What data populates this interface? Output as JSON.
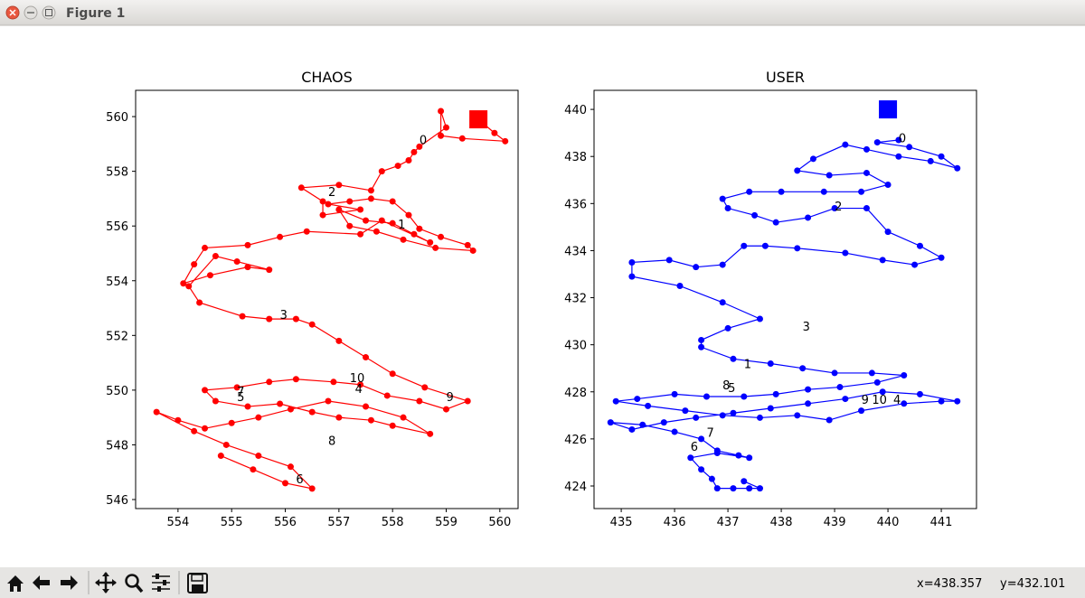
{
  "window": {
    "title": "Figure 1"
  },
  "status": {
    "x": "x=438.357",
    "y": "y=432.101"
  },
  "chart_data": [
    {
      "type": "line",
      "title": "CHAOS",
      "color": "#ff0000",
      "xlim": [
        553.21,
        560.34
      ],
      "ylim": [
        545.67,
        560.96
      ],
      "xticks": [
        554,
        555,
        556,
        557,
        558,
        559,
        560
      ],
      "yticks": [
        546,
        548,
        550,
        552,
        554,
        556,
        558,
        560
      ],
      "end_marker": {
        "x": 559.6,
        "y": 559.9
      },
      "x": [
        559.6,
        559.9,
        560.1,
        559.3,
        558.9,
        558.9,
        559.0,
        558.5,
        558.4,
        558.3,
        558.1,
        557.8,
        557.6,
        557.0,
        556.3,
        556.7,
        556.7,
        557.4,
        556.8,
        557.2,
        557.6,
        558.0,
        558.3,
        558.5,
        558.9,
        559.4,
        559.5,
        558.8,
        558.2,
        557.7,
        557.2,
        557.0,
        557.5,
        558.0,
        558.4,
        558.7,
        557.8,
        557.4,
        556.4,
        555.9,
        555.3,
        554.5,
        554.3,
        554.1,
        554.6,
        555.3,
        555.7,
        555.1,
        554.7,
        554.2,
        554.4,
        555.2,
        555.7,
        556.2,
        556.5,
        557.0,
        557.5,
        558.0,
        558.6,
        559.4,
        559.0,
        558.5,
        557.9,
        557.4,
        556.9,
        556.2,
        555.7,
        555.1,
        554.5,
        554.7,
        555.3,
        555.9,
        556.5,
        557.0,
        557.6,
        558.0,
        558.7,
        558.2,
        557.5,
        556.8,
        556.1,
        555.5,
        555.0,
        554.5,
        554.0,
        553.6,
        554.3,
        554.9,
        555.5,
        556.1,
        556.5,
        556.0,
        555.4,
        554.8
      ],
      "y": [
        559.9,
        559.4,
        559.1,
        559.2,
        559.3,
        560.2,
        559.6,
        558.9,
        558.7,
        558.4,
        558.2,
        558.0,
        557.3,
        557.5,
        557.4,
        556.9,
        556.4,
        556.6,
        556.8,
        556.9,
        557.0,
        556.9,
        556.4,
        555.9,
        555.6,
        555.3,
        555.1,
        555.2,
        555.5,
        555.8,
        556.0,
        556.6,
        556.2,
        556.1,
        555.7,
        555.4,
        556.2,
        555.7,
        555.8,
        555.6,
        555.3,
        555.2,
        554.6,
        553.9,
        554.2,
        554.5,
        554.4,
        554.7,
        554.9,
        553.8,
        553.2,
        552.7,
        552.6,
        552.6,
        552.4,
        551.8,
        551.2,
        550.6,
        550.1,
        549.6,
        549.3,
        549.6,
        549.8,
        550.2,
        550.3,
        550.4,
        550.3,
        550.1,
        550.0,
        549.6,
        549.4,
        549.5,
        549.2,
        549.0,
        548.9,
        548.7,
        548.4,
        549.0,
        549.4,
        549.6,
        549.3,
        549.0,
        548.8,
        548.6,
        548.9,
        549.2,
        548.5,
        548.0,
        547.6,
        547.2,
        546.4,
        546.6,
        547.1,
        547.6
      ],
      "annotations": [
        {
          "text": "0",
          "x": 558.5,
          "y": 559.0
        },
        {
          "text": "1",
          "x": 558.1,
          "y": 555.9
        },
        {
          "text": "2",
          "x": 556.8,
          "y": 557.1
        },
        {
          "text": "3",
          "x": 555.9,
          "y": 552.6
        },
        {
          "text": "4",
          "x": 557.3,
          "y": 549.9
        },
        {
          "text": "5",
          "x": 555.1,
          "y": 549.6
        },
        {
          "text": "6",
          "x": 556.2,
          "y": 546.6
        },
        {
          "text": "7",
          "x": 555.1,
          "y": 549.8
        },
        {
          "text": "8",
          "x": 556.8,
          "y": 548.0
        },
        {
          "text": "9",
          "x": 559.0,
          "y": 549.6
        },
        {
          "text": "10",
          "x": 557.2,
          "y": 550.3
        }
      ]
    },
    {
      "type": "line",
      "title": "USER",
      "color": "#0000ff",
      "xlim": [
        434.49,
        441.66
      ],
      "ylim": [
        423.04,
        440.81
      ],
      "xticks": [
        435,
        436,
        437,
        438,
        439,
        440,
        441
      ],
      "yticks": [
        424,
        426,
        428,
        430,
        432,
        434,
        436,
        438,
        440
      ],
      "end_marker": {
        "x": 440,
        "y": 440
      },
      "x": [
        440.2,
        439.8,
        440.4,
        441.0,
        441.3,
        440.8,
        440.2,
        439.6,
        439.2,
        438.6,
        438.3,
        438.9,
        439.6,
        440.0,
        439.5,
        438.8,
        438.0,
        437.4,
        436.9,
        437.0,
        437.5,
        437.9,
        438.5,
        439.0,
        439.6,
        440.0,
        440.6,
        441.0,
        440.5,
        439.9,
        439.2,
        438.3,
        437.7,
        437.3,
        436.9,
        436.4,
        435.9,
        435.2,
        435.2,
        436.1,
        436.9,
        437.6,
        437.0,
        436.5,
        436.5,
        437.1,
        437.8,
        438.4,
        439.0,
        439.7,
        440.3,
        439.8,
        439.1,
        438.5,
        437.9,
        437.3,
        436.6,
        436.0,
        435.3,
        434.9,
        435.5,
        436.2,
        436.9,
        437.6,
        438.3,
        438.9,
        439.5,
        440.3,
        441.0,
        441.3,
        440.6,
        439.9,
        439.2,
        438.5,
        437.8,
        437.1,
        436.4,
        435.8,
        435.2,
        434.8,
        435.4,
        436.0,
        436.5,
        436.8,
        437.2,
        437.4,
        436.8,
        436.3,
        436.5,
        436.7,
        436.8,
        437.1,
        437.4,
        437.6,
        437.3
      ],
      "y": [
        438.7,
        438.6,
        438.4,
        438.0,
        437.5,
        437.8,
        438.0,
        438.3,
        438.5,
        437.9,
        437.4,
        437.2,
        437.3,
        436.8,
        436.5,
        436.5,
        436.5,
        436.5,
        436.2,
        435.8,
        435.5,
        435.2,
        435.4,
        435.8,
        435.8,
        434.8,
        434.2,
        433.7,
        433.4,
        433.6,
        433.9,
        434.1,
        434.2,
        434.2,
        433.4,
        433.3,
        433.6,
        433.5,
        432.9,
        432.5,
        431.8,
        431.1,
        430.7,
        430.2,
        429.9,
        429.4,
        429.2,
        429.0,
        428.8,
        428.8,
        428.7,
        428.4,
        428.2,
        428.1,
        427.9,
        427.8,
        427.8,
        427.9,
        427.7,
        427.6,
        427.4,
        427.2,
        427.0,
        426.9,
        427.0,
        426.8,
        427.2,
        427.5,
        427.6,
        427.6,
        427.9,
        428.0,
        427.7,
        427.5,
        427.3,
        427.1,
        426.9,
        426.7,
        426.4,
        426.7,
        426.6,
        426.3,
        426.0,
        425.5,
        425.3,
        425.2,
        425.4,
        425.2,
        424.7,
        424.3,
        423.9,
        423.9,
        423.9,
        423.9,
        424.2
      ],
      "annotations": [
        {
          "text": "0",
          "x": 440.2,
          "y": 438.6
        },
        {
          "text": "1",
          "x": 437.3,
          "y": 429.0
        },
        {
          "text": "2",
          "x": 439.0,
          "y": 435.7
        },
        {
          "text": "3",
          "x": 438.4,
          "y": 430.6
        },
        {
          "text": "4",
          "x": 440.1,
          "y": 427.5
        },
        {
          "text": "5",
          "x": 437.0,
          "y": 428.0
        },
        {
          "text": "6",
          "x": 436.3,
          "y": 425.5
        },
        {
          "text": "7",
          "x": 436.6,
          "y": 426.1
        },
        {
          "text": "8",
          "x": 436.9,
          "y": 428.1
        },
        {
          "text": "9",
          "x": 439.5,
          "y": 427.5
        },
        {
          "text": "10",
          "x": 439.7,
          "y": 427.5
        }
      ]
    }
  ]
}
